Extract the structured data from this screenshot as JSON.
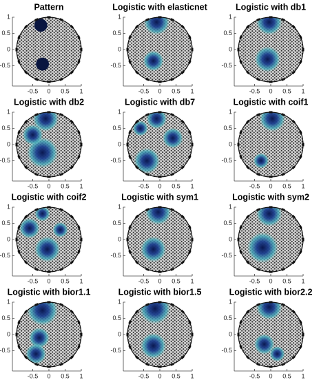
{
  "chart_data": [
    {
      "type": "mesh",
      "title": "Pattern",
      "solid": true,
      "xlim": [
        -1,
        1
      ],
      "ylim": [
        -1,
        1
      ],
      "xticks": [
        -0.5,
        0,
        0.5,
        1
      ],
      "yticks": [
        -0.5,
        0,
        0.5,
        1
      ],
      "hotspots": [
        {
          "x": -0.25,
          "y": 0.75,
          "r": 0.2
        },
        {
          "x": -0.2,
          "y": -0.45,
          "r": 0.2
        }
      ]
    },
    {
      "type": "mesh",
      "title": "Logistic with elasticnet",
      "xlim": [
        -1,
        1
      ],
      "ylim": [
        -1,
        1
      ],
      "xticks": [
        -0.5,
        0,
        0.5,
        1
      ],
      "yticks": [
        -0.5,
        0,
        0.5,
        1
      ],
      "hotspots": [
        {
          "x": -0.1,
          "y": 0.85,
          "r": 0.25
        },
        {
          "x": -0.2,
          "y": -0.35,
          "r": 0.2
        }
      ]
    },
    {
      "type": "mesh",
      "title": "Logistic with db1",
      "xlim": [
        -1,
        1
      ],
      "ylim": [
        -1,
        1
      ],
      "xticks": [
        -0.5,
        0,
        0.5,
        1
      ],
      "yticks": [
        -0.5,
        0,
        0.5,
        1
      ],
      "hotspots": [
        {
          "x": -0.05,
          "y": 0.85,
          "r": 0.25
        },
        {
          "x": -0.1,
          "y": -0.3,
          "r": 0.25
        }
      ]
    },
    {
      "type": "mesh",
      "title": "Logistic with db2",
      "xlim": [
        -1,
        1
      ],
      "ylim": [
        -1,
        1
      ],
      "xticks": [
        -0.5,
        0,
        0.5,
        1
      ],
      "yticks": [
        -0.5,
        0,
        0.5,
        1
      ],
      "hotspots": [
        {
          "x": -0.1,
          "y": 0.8,
          "r": 0.25
        },
        {
          "x": -0.2,
          "y": -0.25,
          "r": 0.3
        },
        {
          "x": -0.5,
          "y": 0.3,
          "r": 0.2
        }
      ]
    },
    {
      "type": "mesh",
      "title": "Logistic with db7",
      "xlim": [
        -1,
        1
      ],
      "ylim": [
        -1,
        1
      ],
      "xticks": [
        -0.5,
        0,
        0.5,
        1
      ],
      "yticks": [
        -0.5,
        0,
        0.5,
        1
      ],
      "hotspots": [
        {
          "x": -0.1,
          "y": 0.8,
          "r": 0.2
        },
        {
          "x": -0.4,
          "y": -0.5,
          "r": 0.25
        },
        {
          "x": 0.4,
          "y": 0.2,
          "r": 0.2
        },
        {
          "x": -0.6,
          "y": 0.5,
          "r": 0.15
        }
      ]
    },
    {
      "type": "mesh",
      "title": "Logistic with coif1",
      "xlim": [
        -1,
        1
      ],
      "ylim": [
        -1,
        1
      ],
      "xticks": [
        -0.5,
        0,
        0.5,
        1
      ],
      "yticks": [
        -0.5,
        0,
        0.5,
        1
      ],
      "hotspots": [
        {
          "x": 0.05,
          "y": 0.8,
          "r": 0.25
        },
        {
          "x": -0.3,
          "y": -0.5,
          "r": 0.15
        }
      ]
    },
    {
      "type": "mesh",
      "title": "Logistic with coif2",
      "xlim": [
        -1,
        1
      ],
      "ylim": [
        -1,
        1
      ],
      "xticks": [
        -0.5,
        0,
        0.5,
        1
      ],
      "yticks": [
        -0.5,
        0,
        0.5,
        1
      ],
      "hotspots": [
        {
          "x": -0.6,
          "y": 0.35,
          "r": 0.2
        },
        {
          "x": -0.05,
          "y": -0.3,
          "r": 0.25
        },
        {
          "x": 0.35,
          "y": 0.3,
          "r": 0.15
        },
        {
          "x": -0.2,
          "y": 0.8,
          "r": 0.15
        }
      ]
    },
    {
      "type": "mesh",
      "title": "Logistic with sym1",
      "xlim": [
        -1,
        1
      ],
      "ylim": [
        -1,
        1
      ],
      "xticks": [
        -0.5,
        0,
        0.5,
        1
      ],
      "yticks": [
        -0.5,
        0,
        0.5,
        1
      ],
      "hotspots": [
        {
          "x": -0.05,
          "y": 0.85,
          "r": 0.25
        },
        {
          "x": -0.2,
          "y": -0.3,
          "r": 0.25
        }
      ]
    },
    {
      "type": "mesh",
      "title": "Logistic with sym2",
      "xlim": [
        -1,
        1
      ],
      "ylim": [
        -1,
        1
      ],
      "xticks": [
        -0.5,
        0,
        0.5,
        1
      ],
      "yticks": [
        -0.5,
        0,
        0.5,
        1
      ],
      "hotspots": [
        {
          "x": -0.05,
          "y": 0.8,
          "r": 0.25
        },
        {
          "x": -0.25,
          "y": -0.25,
          "r": 0.3
        }
      ]
    },
    {
      "type": "mesh",
      "title": "Logistic with bior1.1",
      "xlim": [
        -1,
        1
      ],
      "ylim": [
        -1,
        1
      ],
      "xticks": [
        -0.5,
        0,
        0.5,
        1
      ],
      "yticks": [
        -0.5,
        0,
        0.5,
        1
      ],
      "hotspots": [
        {
          "x": -0.2,
          "y": 0.75,
          "r": 0.3
        },
        {
          "x": -0.3,
          "y": -0.1,
          "r": 0.2
        },
        {
          "x": -0.4,
          "y": -0.6,
          "r": 0.2
        }
      ]
    },
    {
      "type": "mesh",
      "title": "Logistic with bior1.5",
      "xlim": [
        -1,
        1
      ],
      "ylim": [
        -1,
        1
      ],
      "xticks": [
        -0.5,
        0,
        0.5,
        1
      ],
      "yticks": [
        -0.5,
        0,
        0.5,
        1
      ],
      "hotspots": [
        {
          "x": -0.15,
          "y": 0.8,
          "r": 0.3
        },
        {
          "x": -0.2,
          "y": -0.35,
          "r": 0.25
        }
      ]
    },
    {
      "type": "mesh",
      "title": "Logistic with bior2.2",
      "xlim": [
        -1,
        1
      ],
      "ylim": [
        -1,
        1
      ],
      "xticks": [
        -0.5,
        0,
        0.5,
        1
      ],
      "yticks": [
        -0.5,
        0,
        0.5,
        1
      ],
      "hotspots": [
        {
          "x": -0.05,
          "y": 0.85,
          "r": 0.25
        },
        {
          "x": -0.2,
          "y": -0.3,
          "r": 0.2
        },
        {
          "x": 0.2,
          "y": -0.6,
          "r": 0.15
        }
      ]
    }
  ]
}
